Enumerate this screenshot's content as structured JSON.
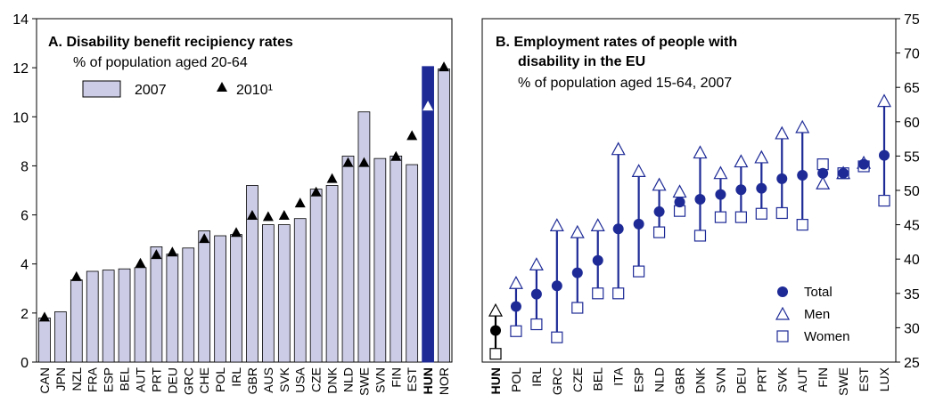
{
  "chart_data": [
    {
      "type": "bar",
      "title": "A. Disability benefit recipiency rates",
      "subtitle": "% of population aged 20-64",
      "ylim": [
        0,
        14
      ],
      "y_ticks": [
        "0",
        "2",
        "4",
        "6",
        "8",
        "10",
        "12",
        "14"
      ],
      "categories": [
        "CAN",
        "JPN",
        "NZL",
        "FRA",
        "ESP",
        "BEL",
        "AUT",
        "PRT",
        "DEU",
        "GRC",
        "CHE",
        "POL",
        "IRL",
        "GBR",
        "AUS",
        "SVK",
        "USA",
        "CZE",
        "DNK",
        "NLD",
        "SWE",
        "SVN",
        "FIN",
        "EST",
        "HUN",
        "NOR"
      ],
      "highlight": "HUN",
      "series": [
        {
          "name": "2007",
          "mark": "bar",
          "values": [
            1.8,
            2.05,
            3.35,
            3.7,
            3.75,
            3.8,
            3.85,
            4.7,
            4.4,
            4.65,
            5.35,
            5.15,
            5.2,
            7.2,
            5.6,
            5.6,
            5.85,
            7.05,
            7.2,
            8.4,
            10.2,
            8.3,
            8.4,
            8.05,
            12.05,
            11.95
          ]
        },
        {
          "name": "2010¹",
          "mark": "triangle",
          "values": [
            1.8,
            null,
            3.45,
            null,
            null,
            null,
            4.0,
            4.35,
            4.45,
            null,
            5.0,
            null,
            5.25,
            5.95,
            5.9,
            5.95,
            6.45,
            6.9,
            7.45,
            8.1,
            8.1,
            null,
            8.35,
            9.2,
            10.4,
            12.0
          ]
        }
      ],
      "colors": {
        "bar": "#cccce6",
        "bar_highlight": "#1e2b96",
        "marker": "#000000"
      }
    },
    {
      "type": "scatter",
      "title": "B. Employment rates of people with disability in the EU",
      "title_lines": [
        "B. Employment rates of people with",
        "disability in the EU"
      ],
      "subtitle": "% of population aged 15-64, 2007",
      "ylim": [
        25,
        75
      ],
      "y_ticks": [
        "25",
        "30",
        "35",
        "40",
        "45",
        "50",
        "55",
        "60",
        "65",
        "70",
        "75"
      ],
      "categories": [
        "HUN",
        "POL",
        "IRL",
        "GRC",
        "CZE",
        "BEL",
        "ITA",
        "ESP",
        "NLD",
        "GBR",
        "DNK",
        "SVN",
        "DEU",
        "PRT",
        "SVK",
        "AUT",
        "FIN",
        "SWE",
        "EST",
        "LUX"
      ],
      "highlight": "HUN",
      "series": [
        {
          "name": "Total",
          "marker": "filled-circle",
          "values": [
            29.6,
            33.1,
            34.9,
            36.1,
            38.0,
            39.8,
            44.4,
            45.1,
            46.9,
            48.3,
            48.7,
            49.4,
            50.1,
            50.3,
            51.7,
            52.2,
            52.5,
            52.5,
            53.8,
            55.1
          ]
        },
        {
          "name": "Men",
          "marker": "open-triangle",
          "values": [
            32.5,
            36.5,
            39.2,
            44.9,
            43.9,
            44.9,
            56.0,
            52.8,
            50.8,
            49.8,
            55.5,
            52.5,
            54.2,
            54.8,
            58.3,
            59.2,
            51.0,
            52.5,
            54.0,
            63.0
          ]
        },
        {
          "name": "Women",
          "marker": "open-square",
          "values": [
            26.2,
            29.5,
            30.5,
            28.6,
            32.9,
            35.0,
            35.0,
            38.2,
            43.9,
            47.0,
            43.4,
            46.1,
            46.1,
            46.6,
            46.7,
            45.0,
            53.8,
            52.5,
            53.5,
            48.5
          ]
        }
      ],
      "colors": {
        "series": "#1e2b96",
        "highlight": "#000000"
      }
    }
  ]
}
